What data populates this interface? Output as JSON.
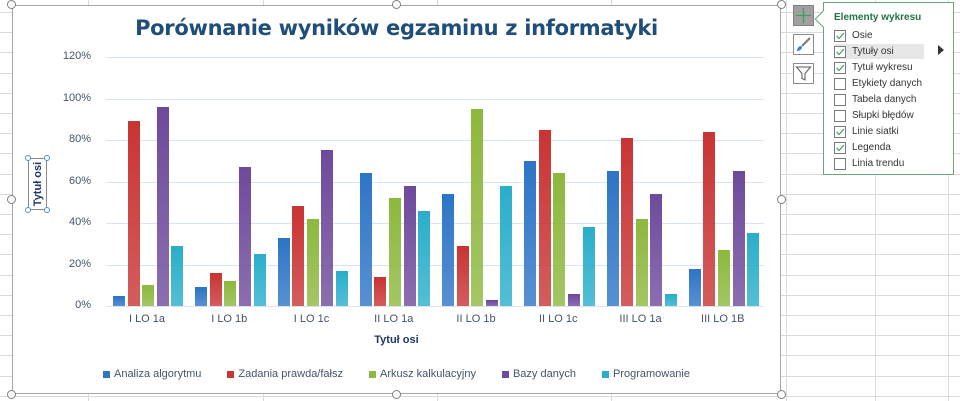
{
  "chart_data": {
    "type": "bar",
    "title": "Porównanie wyników egzaminu z informatyki",
    "xlabel": "Tytuł osi",
    "ylabel": "Tytuł osi",
    "categories": [
      "I LO 1a",
      "I LO 1b",
      "I LO 1c",
      "II LO 1a",
      "II LO 1b",
      "II LO 1c",
      "III LO 1a",
      "III LO 1B"
    ],
    "series": [
      {
        "name": "Analiza algorytmu",
        "color": "#2e75c6",
        "values": [
          5,
          9,
          33,
          64,
          54,
          70,
          65,
          18
        ]
      },
      {
        "name": "Zadania prawda/fałsz",
        "color": "#c93434",
        "values": [
          89,
          16,
          48,
          14,
          29,
          85,
          81,
          84
        ]
      },
      {
        "name": "Arkusz kalkulacyjny",
        "color": "#8db83e",
        "values": [
          10,
          12,
          42,
          52,
          95,
          64,
          42,
          27
        ]
      },
      {
        "name": "Bazy danych",
        "color": "#6f4a9c",
        "values": [
          96,
          67,
          75,
          58,
          3,
          6,
          54,
          65
        ]
      },
      {
        "name": "Programowanie",
        "color": "#2aaecb",
        "values": [
          29,
          25,
          17,
          46,
          58,
          38,
          6,
          35
        ]
      }
    ],
    "yticks": [
      "0%",
      "20%",
      "40%",
      "60%",
      "80%",
      "100%",
      "120%"
    ],
    "ylim": [
      0,
      120
    ],
    "grid": true,
    "legend_position": "bottom"
  },
  "chart_elements_panel": {
    "title": "Elementy wykresu",
    "options": [
      {
        "label": "Osie",
        "checked": true
      },
      {
        "label": "Tytuły osi",
        "checked": true
      },
      {
        "label": "Tytuł wykresu",
        "checked": true
      },
      {
        "label": "Etykiety danych",
        "checked": false
      },
      {
        "label": "Tabela danych",
        "checked": false
      },
      {
        "label": "Słupki błędów",
        "checked": false
      },
      {
        "label": "Linie siatki",
        "checked": true
      },
      {
        "label": "Legenda",
        "checked": true
      },
      {
        "label": "Linia trendu",
        "checked": false
      }
    ]
  },
  "side_buttons": [
    "chart-elements-plus-icon",
    "chart-styles-brush-icon",
    "chart-filters-funnel-icon"
  ]
}
